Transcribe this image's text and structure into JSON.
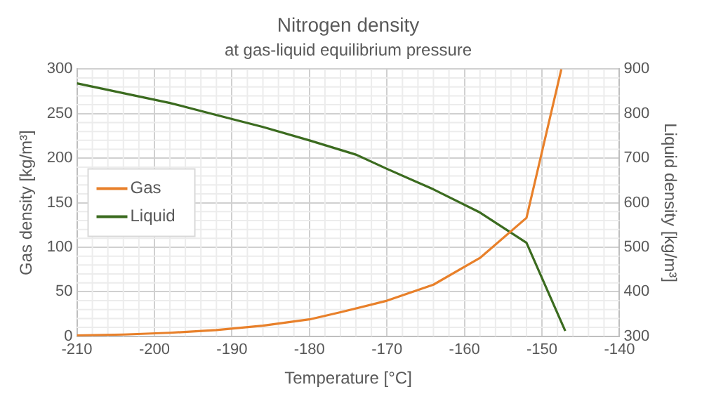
{
  "chart_data": {
    "type": "line",
    "title": "Nitrogen density",
    "subtitle": "at gas-liquid equilibrium pressure",
    "xlabel": "Temperature [°C]",
    "ylabel": "Gas density [kg/m³]",
    "y2label": "Liquid density [kg/m³]",
    "series": [
      {
        "name": "Gas",
        "color": "#e8802a",
        "x": [
          -210,
          -204,
          -198,
          -192,
          -186,
          -180,
          -176,
          -170,
          -164,
          -158,
          -152,
          -147.5
        ],
        "values": [
          1,
          2,
          4,
          7,
          12,
          19,
          27,
          40,
          58,
          88,
          133,
          300
        ]
      },
      {
        "name": "Liquid",
        "color": "#3b6b1f",
        "axis": "y2",
        "x": [
          -210,
          -204,
          -198,
          -192,
          -186,
          -180,
          -174,
          -170,
          -164,
          -158,
          -152,
          -147
        ],
        "values": [
          868,
          846,
          824,
          797,
          770,
          740,
          708,
          676,
          630,
          578,
          510,
          312
        ]
      }
    ],
    "xlim": [
      -210,
      -140
    ],
    "xticks": [
      -210,
      -200,
      -190,
      -180,
      -170,
      -160,
      -150,
      -140
    ],
    "ylim": [
      0,
      300
    ],
    "yticks": [
      0,
      50,
      100,
      150,
      200,
      250,
      300
    ],
    "y2lim": [
      300,
      900
    ],
    "y2ticks": [
      300,
      400,
      500,
      600,
      700,
      800,
      900
    ],
    "grid": true,
    "legend": "center left",
    "marker": "none",
    "line_style": "solid"
  }
}
